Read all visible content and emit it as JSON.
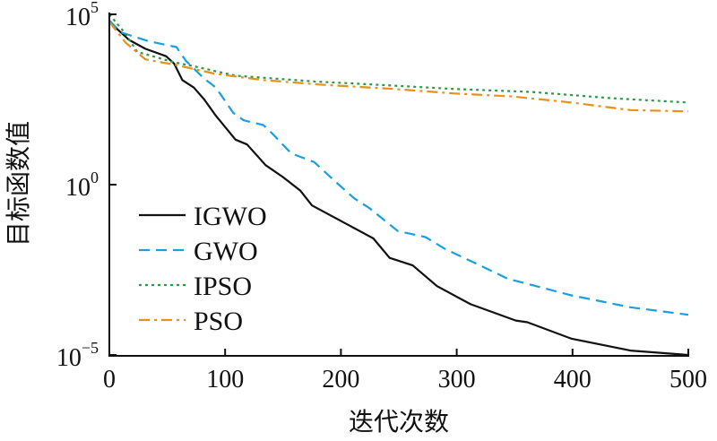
{
  "chart_data": {
    "type": "line",
    "title": "",
    "xlabel": "迭代次数",
    "ylabel": "目标函数值",
    "xlim": [
      0,
      500
    ],
    "ylim": [
      1e-05,
      100000.0
    ],
    "yscale": "log",
    "x_ticks": [
      "0",
      "100",
      "200",
      "300",
      "400",
      "500"
    ],
    "y_ticks": [
      {
        "base": "10",
        "exp": "5"
      },
      {
        "base": "10",
        "exp": "0"
      },
      {
        "base": "10",
        "exp": "−5"
      }
    ],
    "legend_position": "lower-left",
    "grid": false,
    "series": [
      {
        "name": "IGWO",
        "color": "#111111",
        "style": "solid",
        "x": [
          0,
          17,
          31,
          49,
          56,
          63,
          73,
          82,
          92,
          109,
          119,
          135,
          150,
          165,
          175,
          204,
          228,
          242,
          262,
          283,
          312,
          351,
          361,
          399,
          450,
          500
        ],
        "log10_y": [
          4.78,
          4.25,
          3.99,
          3.77,
          3.55,
          3.07,
          2.85,
          2.5,
          2.02,
          1.32,
          1.18,
          0.57,
          0.22,
          -0.18,
          -0.61,
          -1.14,
          -1.58,
          -2.15,
          -2.37,
          -2.98,
          -3.51,
          -3.99,
          -4.04,
          -4.52,
          -4.87,
          -5.0
        ]
      },
      {
        "name": "GWO",
        "color": "#1a9fe0",
        "style": "dashed",
        "x": [
          0,
          10,
          34,
          58,
          66,
          82,
          92,
          107,
          116,
          133,
          141,
          157,
          177,
          194,
          211,
          225,
          249,
          273,
          290,
          317,
          344,
          399,
          450,
          500
        ],
        "log10_y": [
          4.82,
          4.47,
          4.21,
          4.04,
          3.64,
          3.11,
          2.85,
          2.11,
          1.89,
          1.75,
          1.49,
          0.92,
          0.66,
          0.13,
          -0.39,
          -0.7,
          -1.36,
          -1.54,
          -1.89,
          -2.32,
          -2.76,
          -3.25,
          -3.6,
          -3.82
        ]
      },
      {
        "name": "IPSO",
        "color": "#2a9a4a",
        "style": "dotted",
        "x": [
          0,
          14,
          24,
          55,
          75,
          109,
          177,
          228,
          297,
          365,
          433,
          500
        ],
        "log10_y": [
          5.0,
          4.43,
          3.9,
          3.6,
          3.46,
          3.2,
          3.03,
          2.94,
          2.81,
          2.72,
          2.54,
          2.41
        ]
      },
      {
        "name": "PSO",
        "color": "#e8901a",
        "style": "dashdot",
        "x": [
          0,
          14,
          31,
          58,
          92,
          133,
          181,
          245,
          297,
          348,
          399,
          450,
          500
        ],
        "log10_y": [
          4.78,
          4.17,
          3.68,
          3.51,
          3.25,
          3.07,
          2.94,
          2.81,
          2.68,
          2.59,
          2.41,
          2.19,
          2.15
        ]
      }
    ]
  }
}
